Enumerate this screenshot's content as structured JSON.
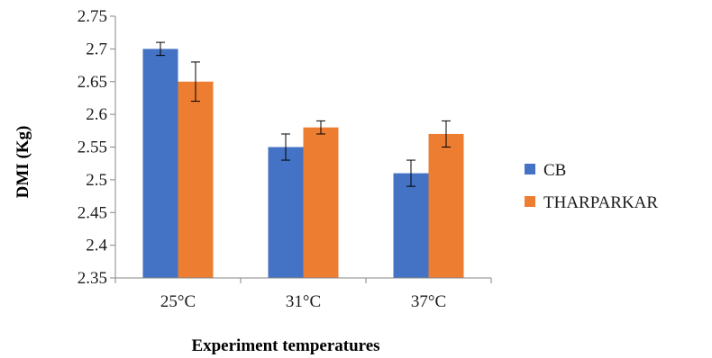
{
  "chart_data": {
    "type": "bar",
    "title": "",
    "xlabel": "Experiment temperatures",
    "ylabel": "DMI (Kg)",
    "categories": [
      "25°C",
      "31°C",
      "37°C"
    ],
    "series": [
      {
        "name": "CB",
        "values": [
          2.7,
          2.55,
          2.51
        ],
        "errors": [
          0.01,
          0.02,
          0.02
        ]
      },
      {
        "name": "THARPARKAR",
        "values": [
          2.65,
          2.58,
          2.57
        ],
        "errors": [
          0.03,
          0.01,
          0.02
        ]
      }
    ],
    "ylim": [
      2.35,
      2.75
    ],
    "yticks": [
      "2.35",
      "2.4",
      "2.45",
      "2.5",
      "2.55",
      "2.6",
      "2.65",
      "2.7",
      "2.75"
    ],
    "grid": false,
    "legend_position": "right"
  },
  "colors": {
    "CB": "#4472c4",
    "THARPARKAR": "#ed7d31",
    "axis": "#868686",
    "error_bar": "#000000"
  }
}
